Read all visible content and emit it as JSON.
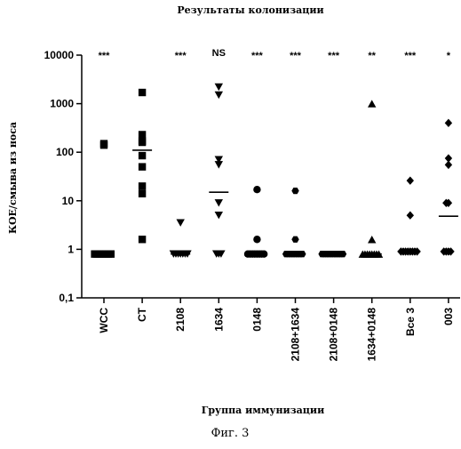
{
  "figure": {
    "title": "Результаты колонизации",
    "caption": "Фиг. 3"
  },
  "chart_data": {
    "type": "scatter",
    "title": "Результаты колонизации",
    "xlabel": "Группа иммунизации",
    "ylabel": "КОЕ/смыва из носа",
    "yscale": "log",
    "ylim": [
      0.1,
      10000
    ],
    "yticks": [
      "0,1",
      "1",
      "10",
      "100",
      "1000",
      "10000"
    ],
    "yticks_values": [
      0.1,
      1,
      10,
      100,
      1000,
      10000
    ],
    "categories": [
      "WCC",
      "CT",
      "2108",
      "1634",
      "0148",
      "2108+1634",
      "2108+0148",
      "1634+0148",
      "Все 3",
      "003"
    ],
    "significance": [
      "***",
      "",
      "***",
      "NS",
      "***",
      "***",
      "***",
      "**",
      "***",
      "*"
    ],
    "groups": [
      {
        "name": "WCC",
        "marker": "square",
        "values": [
          150,
          140,
          0.8,
          0.8,
          0.8,
          0.8,
          0.8,
          0.8,
          0.8,
          0.8
        ],
        "median": 0.8
      },
      {
        "name": "CT",
        "marker": "square",
        "values": [
          1700,
          230,
          170,
          160,
          85,
          50,
          20,
          14,
          1.6
        ],
        "median": 110
      },
      {
        "name": "2108",
        "marker": "triangle-down",
        "values": [
          3.5,
          0.8,
          0.8,
          0.8,
          0.8,
          0.8,
          0.8,
          0.8
        ],
        "median": 0.8
      },
      {
        "name": "1634",
        "marker": "triangle-down",
        "values": [
          2200,
          1500,
          70,
          55,
          9,
          5,
          0.8,
          0.8,
          0.8
        ],
        "median": 15
      },
      {
        "name": "0148",
        "marker": "circle",
        "values": [
          17,
          1.6,
          0.8,
          0.8,
          0.8,
          0.8,
          0.8,
          0.8,
          0.8,
          0.8
        ],
        "median": 0.8
      },
      {
        "name": "2108+1634",
        "marker": "hexagon",
        "values": [
          16,
          1.6,
          0.8,
          0.8,
          0.8,
          0.8,
          0.8,
          0.8,
          0.8,
          0.8
        ],
        "median": 0.8
      },
      {
        "name": "2108+0148",
        "marker": "hexagon",
        "values": [
          0.8,
          0.8,
          0.8,
          0.8,
          0.8,
          0.8,
          0.8,
          0.8,
          0.8,
          0.8
        ],
        "median": 0.8
      },
      {
        "name": "1634+0148",
        "marker": "triangle-up",
        "values": [
          1000,
          1.6,
          0.8,
          0.8,
          0.8,
          0.8,
          0.8,
          0.8,
          0.8,
          0.8
        ],
        "median": 0.8
      },
      {
        "name": "Все 3",
        "marker": "diamond",
        "values": [
          26,
          5,
          0.9,
          0.9,
          0.9,
          0.9,
          0.9,
          0.9,
          0.9,
          0.9
        ],
        "median": 0.9
      },
      {
        "name": "003",
        "marker": "diamond",
        "values": [
          400,
          75,
          55,
          9,
          9,
          0.9,
          0.9,
          0.9,
          0.9
        ],
        "median": 4.8
      }
    ]
  }
}
